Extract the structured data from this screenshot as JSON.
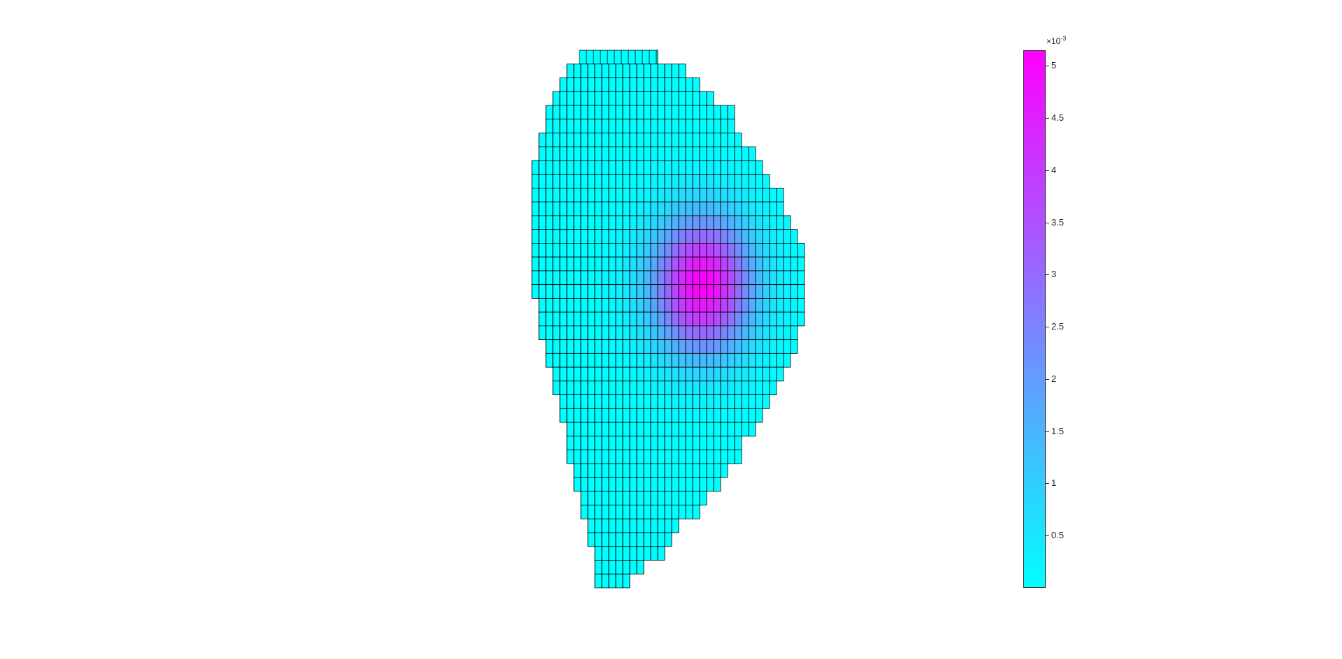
{
  "chart_data": {
    "type": "heatmap",
    "colormap": "cool",
    "colormap_colors": [
      "#00ffff",
      "#ff00ff"
    ],
    "cell_edge_color": "#000000",
    "grid": "cell edges",
    "color_limits": [
      0,
      0.00515
    ],
    "peak_value": 0.00515,
    "grid_rows": 39,
    "shape": "D-shaped cross-section (cell mesh)",
    "colorbar": {
      "location": "right",
      "multiplier": "×10",
      "exponent": "-3",
      "ticks": [
        "0.5",
        "1",
        "1.5",
        "2",
        "2.5",
        "3",
        "3.5",
        "4",
        "4.5",
        "5"
      ],
      "tick_values": [
        0.5,
        1,
        1.5,
        2,
        2.5,
        3,
        3.5,
        4,
        4.5,
        5
      ],
      "range": [
        0.0,
        5.15
      ]
    },
    "title": "",
    "xlabel": "",
    "ylabel": ""
  }
}
